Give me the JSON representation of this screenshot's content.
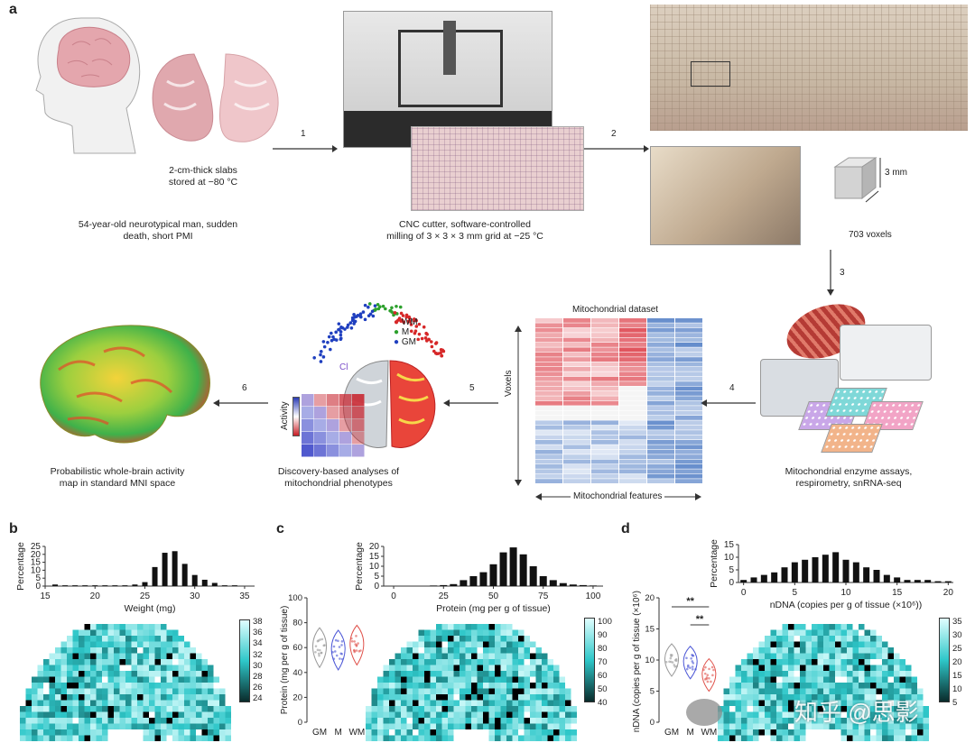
{
  "panels": {
    "a": {
      "label": "a",
      "brain_slab_caption": "2-cm-thick slabs\nstored at −80 °C",
      "donor_caption": "54-year-old neurotypical man, sudden\ndeath, short PMI",
      "cnc_caption": "CNC cutter, software-controlled\nmilling of 3 × 3 × 3 mm grid at −25 °C",
      "cube_dim": "3 mm",
      "voxels_caption": "703 voxels",
      "dataset_title": "Mitochondrial dataset",
      "dataset_y_axis": "Voxels",
      "dataset_x_axis": "Mitochondrial features",
      "assays_caption": "Mitochondrial enzyme assays,\nrespirometry, snRNA-seq",
      "discovery_caption": "Discovery-based analyses of\nmitochondrial phenotypes",
      "activity_map_caption": "Probabilistic whole-brain activity\nmap in standard MNI space",
      "activity_label": "Activity",
      "cl_label": "Cl",
      "legend": [
        {
          "name": "WM",
          "color": "#d62728"
        },
        {
          "name": "M",
          "color": "#2ca02c"
        },
        {
          "name": "GM",
          "color": "#1f3fbf"
        }
      ],
      "steps": [
        "1",
        "2",
        "3",
        "4",
        "5",
        "6"
      ]
    },
    "b": {
      "label": "b",
      "ylabel": "Percentage",
      "xlabel": "Weight (mg)",
      "colorbar_ticks": [
        "38",
        "36",
        "34",
        "32",
        "30",
        "28",
        "26",
        "24"
      ]
    },
    "c": {
      "label": "c",
      "ylabel": "Percentage",
      "xlabel": "Protein (mg per g of tissue)",
      "violin_ylabel": "Protein (mg per g of tissue)",
      "violin_ticks": [
        "100",
        "80",
        "60",
        "40",
        "20",
        "0"
      ],
      "violin_groups": [
        "GM",
        "M",
        "WM"
      ],
      "colorbar_ticks": [
        "100",
        "90",
        "80",
        "70",
        "60",
        "50",
        "40"
      ]
    },
    "d": {
      "label": "d",
      "ylabel": "Percentage",
      "xlabel": "nDNA (copies per g of tissue (×10⁶))",
      "violin_ylabel": "nDNA (copies per g of tissue (×10⁶))",
      "violin_ticks": [
        "20",
        "15",
        "10",
        "5",
        "0"
      ],
      "violin_groups": [
        "GM",
        "M",
        "WM"
      ],
      "significance": [
        "**",
        "**"
      ],
      "colorbar_ticks": [
        "35",
        "30",
        "25",
        "20",
        "15",
        "10",
        "5"
      ],
      "watermark": "知乎 @思影"
    }
  },
  "chart_data": [
    {
      "type": "bar",
      "panel": "b",
      "xlabel": "Weight (mg)",
      "ylabel": "Percentage",
      "xlim": [
        15,
        36
      ],
      "ylim": [
        0,
        25
      ],
      "xticks": [
        15,
        20,
        25,
        30,
        35
      ],
      "yticks": [
        0,
        5,
        10,
        15,
        20,
        25
      ],
      "x": [
        16,
        17,
        18,
        19,
        20,
        21,
        22,
        23,
        24,
        25,
        26,
        27,
        28,
        29,
        30,
        31,
        32,
        33,
        34
      ],
      "values": [
        1,
        0.5,
        0.5,
        0.5,
        0.5,
        0.5,
        0.5,
        0.5,
        1,
        2.5,
        12,
        21,
        22,
        14,
        7,
        4,
        2,
        0.5,
        0.5
      ]
    },
    {
      "type": "bar",
      "panel": "c",
      "xlabel": "Protein (mg per g of tissue)",
      "ylabel": "Percentage",
      "xlim": [
        -5,
        105
      ],
      "ylim": [
        0,
        20
      ],
      "xticks": [
        0,
        25,
        50,
        75,
        100
      ],
      "yticks": [
        0,
        5,
        10,
        15,
        20
      ],
      "x": [
        20,
        25,
        30,
        35,
        40,
        45,
        50,
        55,
        60,
        65,
        70,
        75,
        80,
        85,
        90,
        95,
        100
      ],
      "values": [
        0.3,
        0.5,
        1,
        3,
        5,
        7,
        11,
        17,
        19.5,
        16,
        10,
        5,
        3,
        1.5,
        0.8,
        0.5,
        0.3
      ]
    },
    {
      "type": "bar",
      "panel": "d",
      "xlabel": "nDNA (copies per g of tissue (×10⁶))",
      "ylabel": "Percentage",
      "xlim": [
        -0.5,
        20.5
      ],
      "ylim": [
        0,
        15
      ],
      "xticks": [
        0,
        5,
        10,
        15,
        20
      ],
      "yticks": [
        0,
        5,
        10,
        15
      ],
      "x": [
        0,
        1,
        2,
        3,
        4,
        5,
        6,
        7,
        8,
        9,
        10,
        11,
        12,
        13,
        14,
        15,
        16,
        17,
        18,
        19,
        20
      ],
      "values": [
        1,
        2,
        3,
        4,
        6,
        8,
        9,
        10,
        11,
        12,
        9,
        8,
        6,
        5,
        3,
        2,
        1,
        1,
        1,
        0.5,
        0.5
      ]
    }
  ]
}
